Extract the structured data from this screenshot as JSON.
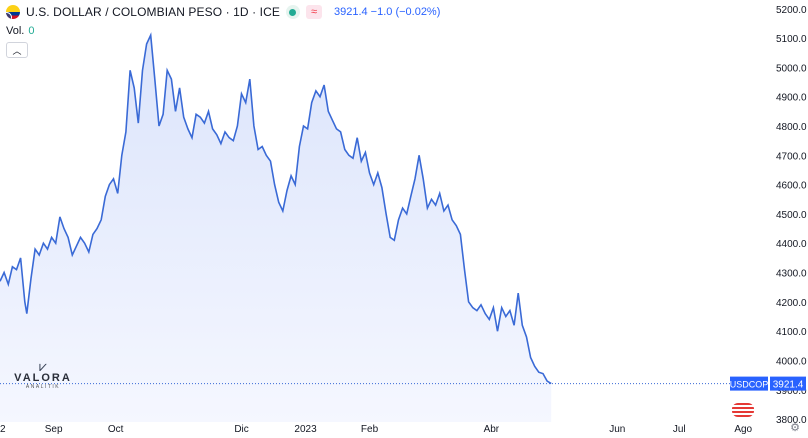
{
  "header": {
    "title": "U.S. DOLLAR / COLOMBIAN PESO · 1D · ICE",
    "quote": "3921.4 −1.0 (−0.02%)",
    "volume_label": "Vol.",
    "volume_value": "0",
    "collapse_icon": "chevron-up-icon"
  },
  "watermark": {
    "mark": "⩗",
    "name": "VALORA",
    "subtitle": "ANALITIK"
  },
  "colors": {
    "line": "#3a6ad6",
    "area_top": "#dbe4fb",
    "area_bottom": "#f5f7ff",
    "axis_text": "#131722",
    "price_label": "#2962ff"
  },
  "last_price": {
    "symbol": "USDCOP",
    "value": "3921.4"
  },
  "chart_data": {
    "type": "area",
    "title": "U.S. DOLLAR / COLOMBIAN PESO · 1D · ICE",
    "xlabel": "",
    "ylabel": "",
    "ylim": [
      3790,
      5230
    ],
    "y_ticks": [
      "5200.0",
      "5100.0",
      "5000.0",
      "4900.0",
      "4800.0",
      "4700.0",
      "4600.0",
      "4500.0",
      "4400.0",
      "4300.0",
      "4200.0",
      "4100.0",
      "4000.0",
      "3900.0",
      "3800.0"
    ],
    "x_ticks": [
      {
        "label": "2",
        "day": 0
      },
      {
        "label": "Sep",
        "day": 26
      },
      {
        "label": "Oct",
        "day": 56
      },
      {
        "label": "Dic",
        "day": 117
      },
      {
        "label": "2023",
        "day": 148
      },
      {
        "label": "Feb",
        "day": 179
      },
      {
        "label": "Abr",
        "day": 238
      },
      {
        "label": "Jun",
        "day": 299
      },
      {
        "label": "Jul",
        "day": 329
      },
      {
        "label": "Ago",
        "day": 360
      }
    ],
    "x_unit": "days from first visible bar",
    "grid": false,
    "series": [
      {
        "values": [
          [
            0,
            4270
          ],
          [
            2,
            4300
          ],
          [
            4,
            4260
          ],
          [
            6,
            4320
          ],
          [
            8,
            4310
          ],
          [
            10,
            4350
          ],
          [
            12,
            4200
          ],
          [
            13,
            4160
          ],
          [
            15,
            4280
          ],
          [
            17,
            4380
          ],
          [
            19,
            4360
          ],
          [
            21,
            4400
          ],
          [
            23,
            4380
          ],
          [
            25,
            4420
          ],
          [
            27,
            4400
          ],
          [
            29,
            4490
          ],
          [
            31,
            4450
          ],
          [
            33,
            4420
          ],
          [
            35,
            4360
          ],
          [
            37,
            4390
          ],
          [
            39,
            4420
          ],
          [
            41,
            4400
          ],
          [
            43,
            4370
          ],
          [
            45,
            4430
          ],
          [
            47,
            4450
          ],
          [
            49,
            4480
          ],
          [
            51,
            4560
          ],
          [
            53,
            4600
          ],
          [
            55,
            4620
          ],
          [
            57,
            4570
          ],
          [
            59,
            4700
          ],
          [
            61,
            4780
          ],
          [
            63,
            4990
          ],
          [
            65,
            4930
          ],
          [
            67,
            4810
          ],
          [
            69,
            4990
          ],
          [
            71,
            5080
          ],
          [
            73,
            5110
          ],
          [
            75,
            4960
          ],
          [
            77,
            4800
          ],
          [
            79,
            4840
          ],
          [
            81,
            4990
          ],
          [
            83,
            4960
          ],
          [
            85,
            4850
          ],
          [
            87,
            4930
          ],
          [
            89,
            4830
          ],
          [
            91,
            4790
          ],
          [
            93,
            4760
          ],
          [
            95,
            4840
          ],
          [
            97,
            4830
          ],
          [
            99,
            4810
          ],
          [
            101,
            4850
          ],
          [
            103,
            4790
          ],
          [
            105,
            4770
          ],
          [
            107,
            4740
          ],
          [
            109,
            4780
          ],
          [
            111,
            4760
          ],
          [
            113,
            4750
          ],
          [
            115,
            4800
          ],
          [
            117,
            4910
          ],
          [
            119,
            4880
          ],
          [
            121,
            4960
          ],
          [
            123,
            4800
          ],
          [
            125,
            4720
          ],
          [
            127,
            4730
          ],
          [
            129,
            4700
          ],
          [
            131,
            4680
          ],
          [
            133,
            4600
          ],
          [
            135,
            4540
          ],
          [
            137,
            4510
          ],
          [
            139,
            4580
          ],
          [
            141,
            4630
          ],
          [
            143,
            4600
          ],
          [
            145,
            4730
          ],
          [
            147,
            4800
          ],
          [
            149,
            4790
          ],
          [
            151,
            4880
          ],
          [
            153,
            4920
          ],
          [
            155,
            4900
          ],
          [
            157,
            4940
          ],
          [
            159,
            4850
          ],
          [
            161,
            4820
          ],
          [
            163,
            4790
          ],
          [
            165,
            4780
          ],
          [
            167,
            4720
          ],
          [
            169,
            4700
          ],
          [
            171,
            4690
          ],
          [
            173,
            4760
          ],
          [
            175,
            4680
          ],
          [
            177,
            4710
          ],
          [
            179,
            4640
          ],
          [
            181,
            4600
          ],
          [
            183,
            4640
          ],
          [
            185,
            4590
          ],
          [
            187,
            4500
          ],
          [
            189,
            4420
          ],
          [
            191,
            4410
          ],
          [
            193,
            4480
          ],
          [
            195,
            4520
          ],
          [
            197,
            4500
          ],
          [
            199,
            4560
          ],
          [
            201,
            4620
          ],
          [
            203,
            4700
          ],
          [
            205,
            4620
          ],
          [
            207,
            4520
          ],
          [
            209,
            4550
          ],
          [
            211,
            4530
          ],
          [
            213,
            4570
          ],
          [
            215,
            4510
          ],
          [
            217,
            4530
          ],
          [
            219,
            4480
          ],
          [
            221,
            4460
          ],
          [
            223,
            4430
          ],
          [
            225,
            4310
          ],
          [
            227,
            4200
          ],
          [
            229,
            4180
          ],
          [
            231,
            4170
          ],
          [
            233,
            4190
          ],
          [
            235,
            4160
          ],
          [
            237,
            4140
          ],
          [
            239,
            4180
          ],
          [
            241,
            4100
          ],
          [
            243,
            4180
          ],
          [
            245,
            4150
          ],
          [
            247,
            4170
          ],
          [
            249,
            4120
          ],
          [
            251,
            4230
          ],
          [
            253,
            4120
          ],
          [
            255,
            4080
          ],
          [
            257,
            4010
          ],
          [
            259,
            3980
          ],
          [
            261,
            3960
          ],
          [
            263,
            3955
          ],
          [
            265,
            3930
          ],
          [
            267,
            3921
          ]
        ]
      }
    ]
  }
}
